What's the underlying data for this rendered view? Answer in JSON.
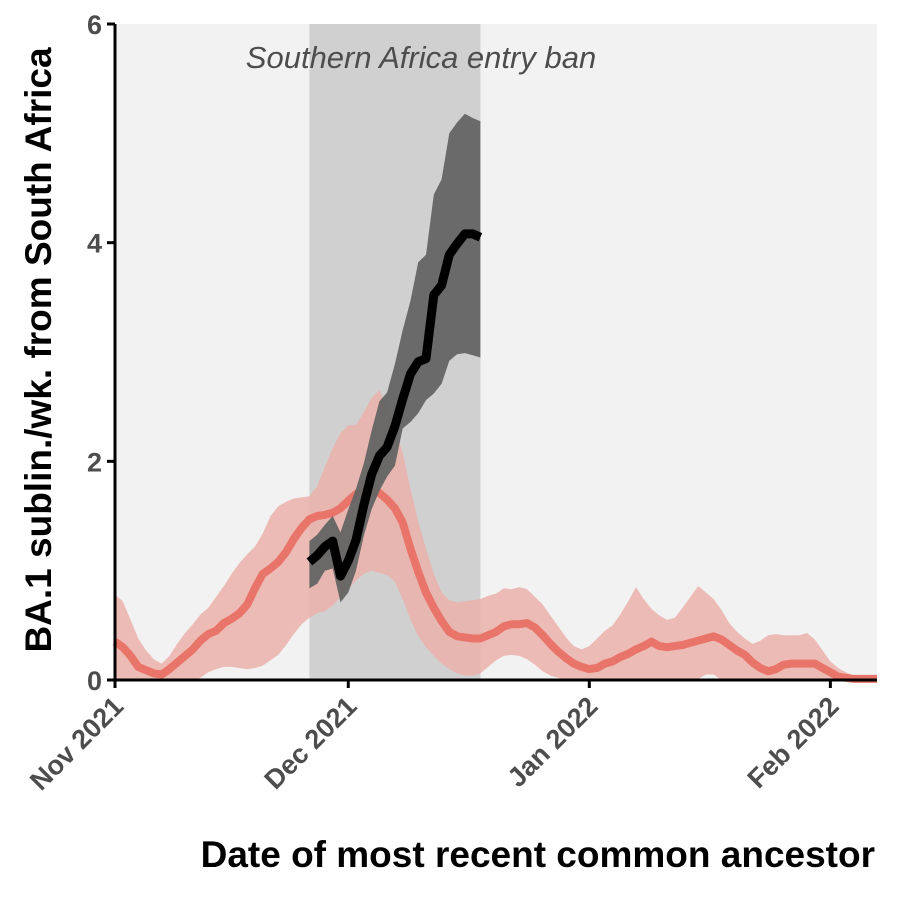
{
  "chart_data": {
    "type": "line",
    "title": "",
    "xlabel": "Date of most recent common ancestor",
    "ylabel": "BA.1 sublin./wk. from South Africa",
    "x_axis": {
      "type": "date",
      "range": [
        "2021-11-01",
        "2022-02-07"
      ],
      "ticks": [
        {
          "date": "2021-11-01",
          "label": "Nov 2021"
        },
        {
          "date": "2021-12-01",
          "label": "Dec 2021"
        },
        {
          "date": "2022-01-01",
          "label": "Jan 2022"
        },
        {
          "date": "2022-02-01",
          "label": "Feb 2022"
        }
      ]
    },
    "y_axis": {
      "range": [
        0,
        6
      ],
      "ticks": [
        {
          "value": 0,
          "label": "0"
        },
        {
          "value": 2,
          "label": "2"
        },
        {
          "value": 4,
          "label": "4"
        },
        {
          "value": 6,
          "label": "6"
        }
      ]
    },
    "grid": false,
    "legend": "none",
    "annotations": [
      {
        "text": "Southern Africa entry ban",
        "x_start": "2021-11-26",
        "x_end": "2021-12-18",
        "shaded": true
      }
    ],
    "colors": {
      "panel_background": "#f2f2f2",
      "ban_band": "#d0d0d0",
      "red_line": "#e8746a",
      "red_ribbon": "#ebb1aa",
      "black_line": "#000000",
      "black_ribbon": "#646464",
      "axis": "#000000"
    },
    "series": [
      {
        "color": "red",
        "x": [
          "2021-11-01",
          "2021-11-02",
          "2021-11-03",
          "2021-11-04",
          "2021-11-05",
          "2021-11-06",
          "2021-11-07",
          "2021-11-08",
          "2021-11-09",
          "2021-11-10",
          "2021-11-11",
          "2021-11-12",
          "2021-11-13",
          "2021-11-14",
          "2021-11-15",
          "2021-11-16",
          "2021-11-17",
          "2021-11-18",
          "2021-11-19",
          "2021-11-20",
          "2021-11-21",
          "2021-11-22",
          "2021-11-23",
          "2021-11-24",
          "2021-11-25",
          "2021-11-26",
          "2021-11-27",
          "2021-11-28",
          "2021-11-29",
          "2021-11-30",
          "2021-12-01",
          "2021-12-02",
          "2021-12-03",
          "2021-12-04",
          "2021-12-05",
          "2021-12-06",
          "2021-12-07",
          "2021-12-08",
          "2021-12-09",
          "2021-12-10",
          "2021-12-11",
          "2021-12-12",
          "2021-12-13",
          "2021-12-14",
          "2021-12-15",
          "2021-12-16",
          "2021-12-17",
          "2021-12-18",
          "2021-12-19",
          "2021-12-20",
          "2021-12-21",
          "2021-12-22",
          "2021-12-23",
          "2021-12-24",
          "2021-12-25",
          "2021-12-26",
          "2021-12-27",
          "2021-12-28",
          "2021-12-29",
          "2021-12-30",
          "2021-12-31",
          "2022-01-01",
          "2022-01-02",
          "2022-01-03",
          "2022-01-04",
          "2022-01-05",
          "2022-01-06",
          "2022-01-07",
          "2022-01-08",
          "2022-01-09",
          "2022-01-10",
          "2022-01-11",
          "2022-01-12",
          "2022-01-13",
          "2022-01-14",
          "2022-01-15",
          "2022-01-16",
          "2022-01-17",
          "2022-01-18",
          "2022-01-19",
          "2022-01-20",
          "2022-01-21",
          "2022-01-22",
          "2022-01-23",
          "2022-01-24",
          "2022-01-25",
          "2022-01-26",
          "2022-01-27",
          "2022-01-28",
          "2022-01-29",
          "2022-01-30",
          "2022-01-31",
          "2022-02-01",
          "2022-02-02",
          "2022-02-03",
          "2022-02-04",
          "2022-02-05",
          "2022-02-06",
          "2022-02-07"
        ],
        "y": [
          0.35,
          0.3,
          0.22,
          0.12,
          0.09,
          0.06,
          0.05,
          0.1,
          0.16,
          0.22,
          0.28,
          0.36,
          0.42,
          0.45,
          0.52,
          0.56,
          0.61,
          0.69,
          0.84,
          0.97,
          1.02,
          1.08,
          1.17,
          1.29,
          1.39,
          1.47,
          1.5,
          1.51,
          1.53,
          1.57,
          1.64,
          1.7,
          1.73,
          1.74,
          1.71,
          1.65,
          1.57,
          1.44,
          1.2,
          0.99,
          0.8,
          0.66,
          0.54,
          0.44,
          0.4,
          0.39,
          0.38,
          0.38,
          0.41,
          0.44,
          0.49,
          0.51,
          0.51,
          0.52,
          0.48,
          0.41,
          0.33,
          0.26,
          0.2,
          0.15,
          0.12,
          0.1,
          0.11,
          0.15,
          0.17,
          0.21,
          0.24,
          0.28,
          0.31,
          0.35,
          0.31,
          0.3,
          0.31,
          0.32,
          0.34,
          0.36,
          0.38,
          0.4,
          0.37,
          0.32,
          0.27,
          0.23,
          0.16,
          0.11,
          0.08,
          0.1,
          0.14,
          0.15,
          0.15,
          0.15,
          0.15,
          0.11,
          0.07,
          0.03,
          0.02,
          0.01,
          0.01,
          0.01,
          0.01
        ],
        "lower": [
          0.0,
          0.0,
          0.0,
          0.0,
          0.0,
          0.0,
          0.0,
          0.0,
          0.0,
          0.0,
          0.0,
          0.02,
          0.07,
          0.1,
          0.12,
          0.12,
          0.11,
          0.1,
          0.11,
          0.13,
          0.18,
          0.23,
          0.32,
          0.42,
          0.51,
          0.57,
          0.61,
          0.63,
          0.68,
          0.76,
          0.83,
          0.91,
          0.97,
          1.0,
          0.98,
          0.96,
          0.9,
          0.74,
          0.55,
          0.4,
          0.3,
          0.22,
          0.15,
          0.1,
          0.06,
          0.04,
          0.04,
          0.06,
          0.12,
          0.18,
          0.22,
          0.23,
          0.22,
          0.19,
          0.14,
          0.08,
          0.04,
          0.02,
          0.0,
          0.0,
          0.0,
          0.0,
          0.0,
          0.0,
          0.0,
          0.0,
          0.0,
          0.0,
          0.0,
          0.0,
          0.0,
          0.0,
          0.0,
          0.0,
          0.0,
          0.01,
          0.05,
          0.05,
          0.0,
          0.0,
          0.0,
          0.0,
          0.0,
          0.0,
          0.0,
          0.0,
          0.0,
          0.0,
          0.0,
          0.0,
          0.0,
          0.0,
          0.0,
          0.0,
          0.0,
          0.0,
          0.0,
          0.0,
          0.0
        ],
        "upper": [
          0.78,
          0.72,
          0.55,
          0.38,
          0.27,
          0.19,
          0.15,
          0.22,
          0.33,
          0.43,
          0.51,
          0.6,
          0.66,
          0.76,
          0.86,
          0.97,
          1.07,
          1.15,
          1.22,
          1.34,
          1.5,
          1.59,
          1.63,
          1.66,
          1.67,
          1.68,
          1.77,
          1.95,
          2.12,
          2.26,
          2.33,
          2.33,
          2.45,
          2.58,
          2.65,
          2.5,
          2.3,
          2.08,
          1.75,
          1.45,
          1.2,
          0.97,
          0.8,
          0.73,
          0.71,
          0.72,
          0.73,
          0.74,
          0.77,
          0.79,
          0.84,
          0.83,
          0.85,
          0.83,
          0.76,
          0.69,
          0.59,
          0.49,
          0.39,
          0.31,
          0.28,
          0.31,
          0.38,
          0.45,
          0.5,
          0.6,
          0.72,
          0.85,
          0.74,
          0.65,
          0.59,
          0.55,
          0.57,
          0.66,
          0.76,
          0.86,
          0.8,
          0.74,
          0.64,
          0.52,
          0.44,
          0.38,
          0.33,
          0.36,
          0.41,
          0.42,
          0.41,
          0.41,
          0.41,
          0.43,
          0.37,
          0.27,
          0.17,
          0.11,
          0.07,
          0.04,
          0.02,
          0.02,
          0.02
        ]
      },
      {
        "color": "black",
        "x": [
          "2021-11-26",
          "2021-11-27",
          "2021-11-28",
          "2021-11-29",
          "2021-11-30",
          "2021-12-01",
          "2021-12-02",
          "2021-12-03",
          "2021-12-04",
          "2021-12-05",
          "2021-12-06",
          "2021-12-07",
          "2021-12-08",
          "2021-12-09",
          "2021-12-10",
          "2021-12-11",
          "2021-12-12",
          "2021-12-13",
          "2021-12-14",
          "2021-12-15",
          "2021-12-16",
          "2021-12-17",
          "2021-12-18"
        ],
        "y": [
          1.08,
          1.14,
          1.22,
          1.27,
          0.95,
          1.09,
          1.28,
          1.6,
          1.88,
          2.05,
          2.13,
          2.32,
          2.57,
          2.8,
          2.91,
          2.94,
          3.52,
          3.61,
          3.89,
          3.99,
          4.08,
          4.08,
          4.05
        ],
        "lower": [
          0.84,
          0.88,
          1.0,
          1.02,
          0.71,
          0.8,
          1.0,
          1.32,
          1.56,
          1.73,
          1.86,
          1.96,
          2.3,
          2.36,
          2.44,
          2.56,
          2.62,
          2.71,
          2.92,
          2.98,
          2.99,
          2.97,
          2.95
        ],
        "upper": [
          1.27,
          1.33,
          1.42,
          1.5,
          1.35,
          1.56,
          1.75,
          1.98,
          2.28,
          2.55,
          2.63,
          2.89,
          3.2,
          3.47,
          3.82,
          3.89,
          4.44,
          4.58,
          5.0,
          5.1,
          5.18,
          5.14,
          5.11
        ]
      }
    ]
  }
}
